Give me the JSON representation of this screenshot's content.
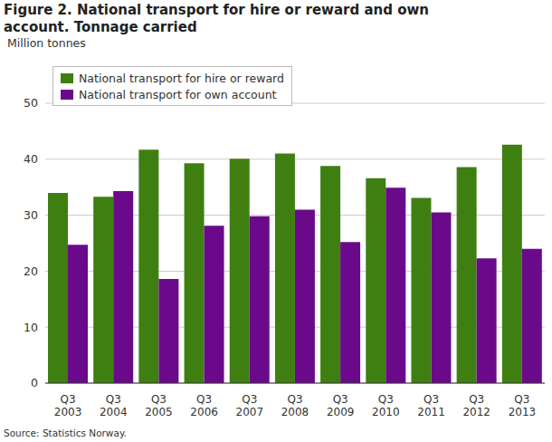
{
  "chart_data": {
    "type": "bar",
    "title": "Figure 2. National transport for hire or reward and own account. Tonnage carried",
    "y_label": "Million tonnes",
    "source": "Source: Statistics Norway.",
    "categories": [
      "Q3 2003",
      "Q3 2004",
      "Q3 2005",
      "Q3 2006",
      "Q3 2007",
      "Q3 2008",
      "Q3 2009",
      "Q3 2010",
      "Q3 2011",
      "Q3 2012",
      "Q3 2013"
    ],
    "series": [
      {
        "name": "National transport for hire or reward",
        "color": "#3f7f12",
        "values": [
          34.0,
          33.3,
          41.7,
          39.3,
          40.1,
          41.0,
          38.8,
          36.6,
          33.1,
          38.6,
          42.6
        ]
      },
      {
        "name": "National transport for own account",
        "color": "#6a0a8a",
        "values": [
          24.7,
          34.3,
          18.6,
          28.1,
          29.8,
          31.0,
          25.2,
          34.9,
          30.5,
          22.3,
          24.0
        ]
      }
    ],
    "ylim": [
      0,
      50
    ],
    "yticks": [
      0,
      10,
      20,
      30,
      40,
      50
    ],
    "grid": true,
    "legend": "upper left"
  }
}
